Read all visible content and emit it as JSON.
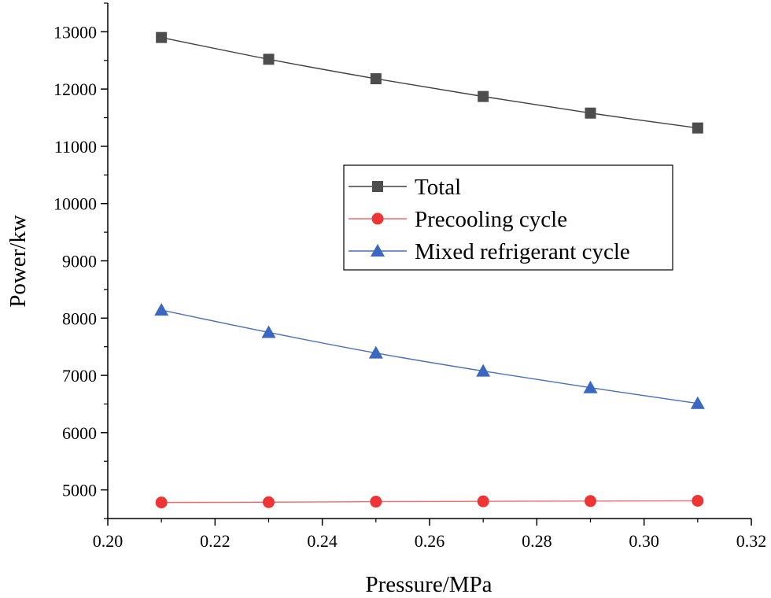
{
  "chart_data": {
    "type": "line",
    "title": "",
    "xlabel": "Pressure/MPa",
    "ylabel": "Power/kw",
    "xlim": [
      0.2,
      0.32
    ],
    "ylim": [
      4500,
      13500
    ],
    "x": [
      0.21,
      0.23,
      0.25,
      0.27,
      0.29,
      0.31
    ],
    "x_tick_labels": [
      "0.20",
      "0.22",
      "0.24",
      "0.26",
      "0.28",
      "0.30",
      "0.32"
    ],
    "y_tick_labels": [
      "5000",
      "6000",
      "7000",
      "8000",
      "9000",
      "10000",
      "11000",
      "12000",
      "13000"
    ],
    "legend_position": "center-right",
    "grid": false,
    "series": [
      {
        "name": "Total",
        "marker": "square",
        "color": "#404040",
        "markerColor": "#4d4d4d",
        "values": [
          12900,
          12520,
          12180,
          11870,
          11580,
          11320
        ]
      },
      {
        "name": "Precooling cycle",
        "marker": "circle",
        "color": "#f26b6b",
        "markerColor": "#ee3434",
        "values": [
          4780,
          4785,
          4795,
          4800,
          4805,
          4810
        ]
      },
      {
        "name": "Mixed refrigerant cycle",
        "marker": "triangle",
        "color": "#4a6fb5",
        "markerColor": "#3a67bf",
        "values": [
          8140,
          7750,
          7390,
          7075,
          6785,
          6510
        ]
      }
    ]
  }
}
